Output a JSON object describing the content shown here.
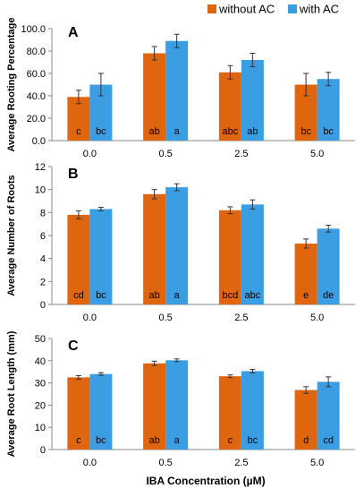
{
  "figure": {
    "xlabel": "IBA Concentration (µM)"
  },
  "legend": {
    "items": [
      {
        "label": "without AC"
      },
      {
        "label": "with AC"
      }
    ]
  },
  "colors": {
    "without_ac": "#e0650f",
    "with_ac": "#3b9ee3",
    "error_bar": "#333333",
    "axis": "#888888"
  },
  "chart_data": [
    {
      "type": "bar",
      "panel_label": "A",
      "title": "",
      "ylabel": "Average Rooting Percentage",
      "xlabel": "",
      "categories": [
        "0.0",
        "0.5",
        "2.5",
        "5.0"
      ],
      "ylim": [
        0,
        100
      ],
      "yticks": [
        "0.0",
        "20.0",
        "40.0",
        "60.0",
        "80.0",
        "100.0"
      ],
      "grid": false,
      "legend_position": "top-right",
      "series": [
        {
          "name": "without AC",
          "values": [
            39,
            78,
            61,
            50
          ],
          "errors": [
            6,
            6,
            6,
            10
          ],
          "letters": [
            "c",
            "ab",
            "abc",
            "bc"
          ]
        },
        {
          "name": "with AC",
          "values": [
            50,
            89,
            72,
            55
          ],
          "errors": [
            10,
            6,
            6,
            6
          ],
          "letters": [
            "bc",
            "a",
            "ab",
            "bc"
          ]
        }
      ]
    },
    {
      "type": "bar",
      "panel_label": "B",
      "title": "",
      "ylabel": "Average Number of Roots",
      "xlabel": "",
      "categories": [
        "0.0",
        "0.5",
        "2.5",
        "5.0"
      ],
      "ylim": [
        0,
        12
      ],
      "yticks": [
        "0",
        "2",
        "4",
        "6",
        "8",
        "10",
        "12"
      ],
      "grid": false,
      "series": [
        {
          "name": "without AC",
          "values": [
            7.8,
            9.6,
            8.2,
            5.3
          ],
          "errors": [
            0.35,
            0.4,
            0.3,
            0.4
          ],
          "letters": [
            "cd",
            "ab",
            "bcd",
            "e"
          ]
        },
        {
          "name": "with AC",
          "values": [
            8.3,
            10.2,
            8.7,
            6.6
          ],
          "errors": [
            0.15,
            0.3,
            0.4,
            0.3
          ],
          "letters": [
            "bc",
            "a",
            "abc",
            "de"
          ]
        }
      ]
    },
    {
      "type": "bar",
      "panel_label": "C",
      "title": "",
      "ylabel": "Average Root Length (mm)",
      "xlabel": "IBA Concentration (µM)",
      "categories": [
        "0.0",
        "0.5",
        "2.5",
        "5.0"
      ],
      "ylim": [
        0,
        50
      ],
      "yticks": [
        "0",
        "10",
        "20",
        "30",
        "40",
        "50"
      ],
      "grid": false,
      "series": [
        {
          "name": "without AC",
          "values": [
            32.5,
            38.8,
            33,
            26.8
          ],
          "errors": [
            0.8,
            1.0,
            0.6,
            1.5
          ],
          "letters": [
            "c",
            "ab",
            "c",
            "d"
          ]
        },
        {
          "name": "with AC",
          "values": [
            34,
            40.2,
            35.3,
            30.5
          ],
          "errors": [
            0.6,
            0.6,
            0.8,
            2.2
          ],
          "letters": [
            "bc",
            "a",
            "bc",
            "cd"
          ]
        }
      ]
    }
  ]
}
